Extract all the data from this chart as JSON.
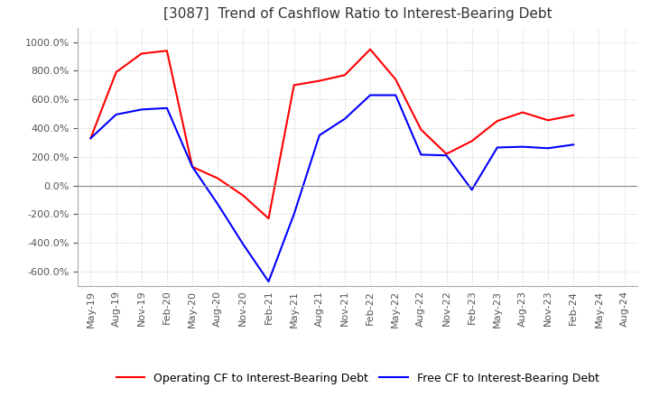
{
  "title": "[3087]  Trend of Cashflow Ratio to Interest-Bearing Debt",
  "x_labels": [
    "May-19",
    "Aug-19",
    "Nov-19",
    "Feb-20",
    "May-20",
    "Aug-20",
    "Nov-20",
    "Feb-21",
    "May-21",
    "Aug-21",
    "Nov-21",
    "Feb-22",
    "May-22",
    "Aug-22",
    "Nov-22",
    "Feb-23",
    "May-23",
    "Aug-23",
    "Nov-23",
    "Feb-24",
    "May-24",
    "Aug-24"
  ],
  "operating_cf": [
    330.0,
    790.0,
    920.0,
    940.0,
    130.0,
    50.0,
    -70.0,
    -230.0,
    700.0,
    730.0,
    770.0,
    950.0,
    740.0,
    390.0,
    220.0,
    310.0,
    450.0,
    510.0,
    455.0,
    490.0,
    null,
    null
  ],
  "free_cf": [
    330.0,
    495.0,
    530.0,
    540.0,
    130.0,
    -130.0,
    -410.0,
    -670.0,
    -200.0,
    350.0,
    465.0,
    630.0,
    630.0,
    215.0,
    210.0,
    -30.0,
    265.0,
    270.0,
    260.0,
    285.0,
    null,
    null
  ],
  "operating_color": "#ff0000",
  "free_color": "#0000ff",
  "ylim": [
    -700,
    1100
  ],
  "yticks": [
    -600,
    -400,
    -200,
    0,
    200,
    400,
    600,
    800,
    1000
  ],
  "background_color": "#ffffff",
  "grid_color": "#c8c8c8",
  "title_fontsize": 11,
  "tick_fontsize": 8,
  "legend_fontsize": 9
}
